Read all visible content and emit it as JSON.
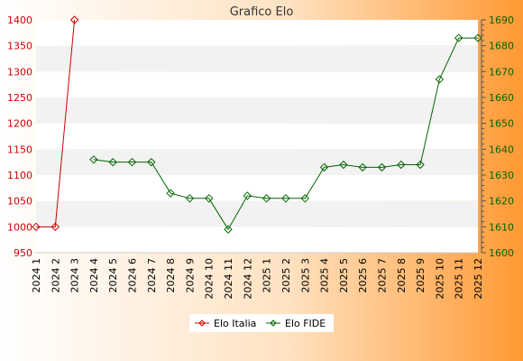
{
  "colors": {
    "series_italia": "#cc0000",
    "series_fide": "#006600",
    "left_axis_text": "#cc0000",
    "right_axis_text": "#006600",
    "plot_band_a": "#ffffff",
    "plot_band_b": "#f2f2f2",
    "bg_left": "#ffffff",
    "bg_right": "#ff9933"
  },
  "chart_data": {
    "type": "line",
    "title": "Grafico Elo",
    "categories": [
      "2024 1",
      "2024 2",
      "2024 3",
      "2024 4",
      "2024 5",
      "2024 6",
      "2024 7",
      "2024 8",
      "2024 9",
      "2024 10",
      "2024 11",
      "2024 12",
      "2025 1",
      "2025 2",
      "2025 3",
      "2025 4",
      "2025 5",
      "2025 6",
      "2025 7",
      "2025 8",
      "2025 9",
      "2025 10",
      "2025 11",
      "2025 12"
    ],
    "y_left": {
      "range": [
        950,
        1400
      ],
      "ticks": [
        950,
        1000,
        1050,
        1100,
        1150,
        1200,
        1250,
        1300,
        1350,
        1400
      ]
    },
    "y_right": {
      "range": [
        1600,
        1690
      ],
      "ticks": [
        1600,
        1610,
        1620,
        1630,
        1640,
        1650,
        1660,
        1670,
        1680,
        1690
      ]
    },
    "grid": "horizontal-bands",
    "legend_position": "bottom-center",
    "series": [
      {
        "name": "Elo Italia",
        "axis": "left",
        "marker": "diamond",
        "values": [
          1000,
          1000,
          1400,
          null,
          null,
          null,
          null,
          null,
          null,
          null,
          null,
          null,
          null,
          null,
          null,
          null,
          null,
          null,
          null,
          null,
          null,
          null,
          null,
          null
        ]
      },
      {
        "name": "Elo FIDE",
        "axis": "right",
        "marker": "diamond",
        "values": [
          null,
          null,
          null,
          1636,
          1635,
          1635,
          1635,
          1623,
          1621,
          1621,
          1609,
          1622,
          1621,
          1621,
          1621,
          1633,
          1634,
          1633,
          1633,
          1634,
          1634,
          1667,
          1683,
          1683
        ]
      }
    ]
  }
}
